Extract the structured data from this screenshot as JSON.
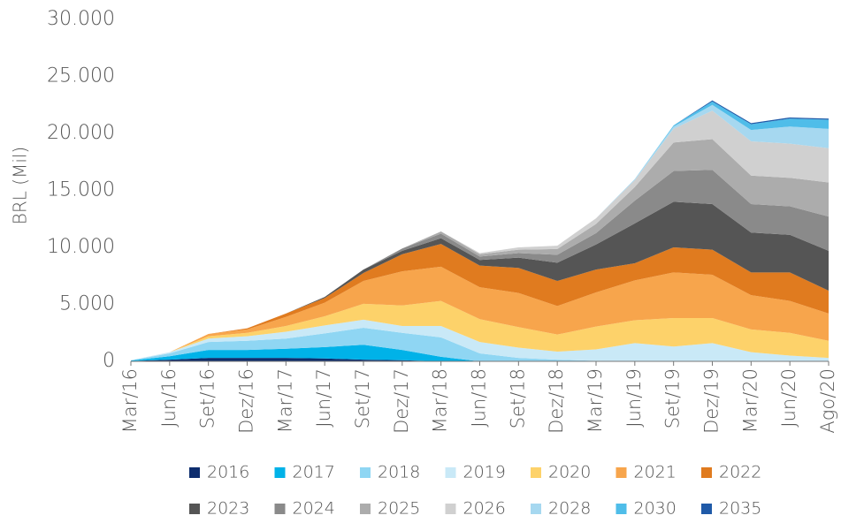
{
  "chart_data": {
    "type": "stacked_area",
    "y_label": "BRL (Mil)",
    "categories": [
      "Mar/16",
      "Jun/16",
      "Set/16",
      "Dez/16",
      "Mar/17",
      "Jun/17",
      "Set/17",
      "Dez/17",
      "Mar/18",
      "Jun/18",
      "Set/18",
      "Dez/18",
      "Mar/19",
      "Jun/19",
      "Set/19",
      "Dez/19",
      "Mar/20",
      "Jun/20",
      "Ago/20"
    ],
    "ylim": [
      0,
      30000
    ],
    "yticks": [
      0,
      {
        "value": 5000,
        "label": "5.000"
      },
      {
        "value": 10000,
        "label": "10.000"
      },
      {
        "value": 15000,
        "label": "15.000"
      },
      {
        "value": 20000,
        "label": "20.000"
      },
      {
        "value": 25000,
        "label": "25.000"
      },
      {
        "value": 30000,
        "label": "30.000"
      }
    ],
    "grid": false,
    "legend": "bottom",
    "series": [
      {
        "name": "2016",
        "color": "#0d2d6e",
        "values": [
          30,
          150,
          300,
          300,
          300,
          250,
          150,
          100,
          0,
          0,
          0,
          0,
          0,
          0,
          0,
          0,
          0,
          0,
          0
        ]
      },
      {
        "name": "2017",
        "color": "#00b2e8",
        "values": [
          40,
          300,
          700,
          700,
          800,
          1000,
          1300,
          900,
          400,
          0,
          0,
          0,
          0,
          0,
          0,
          0,
          0,
          0,
          0
        ]
      },
      {
        "name": "2018",
        "color": "#8fd6f3",
        "values": [
          30,
          250,
          700,
          800,
          900,
          1200,
          1500,
          1500,
          1700,
          700,
          300,
          150,
          50,
          0,
          0,
          0,
          0,
          0,
          0
        ]
      },
      {
        "name": "2019",
        "color": "#c9e9f7",
        "values": [
          0,
          100,
          300,
          400,
          600,
          700,
          700,
          600,
          1000,
          1000,
          900,
          700,
          1000,
          1600,
          1300,
          1600,
          800,
          500,
          300
        ]
      },
      {
        "name": "2020",
        "color": "#fdd26a",
        "values": [
          0,
          0,
          200,
          300,
          500,
          800,
          1400,
          1800,
          2200,
          2000,
          1800,
          1500,
          2000,
          2000,
          2500,
          2200,
          2000,
          2000,
          1500
        ]
      },
      {
        "name": "2021",
        "color": "#f7a54c",
        "values": [
          0,
          0,
          200,
          300,
          800,
          1200,
          2000,
          3000,
          3000,
          2800,
          3000,
          2500,
          3000,
          3500,
          4000,
          3800,
          3000,
          2800,
          2400
        ]
      },
      {
        "name": "2022",
        "color": "#e07b1f",
        "values": [
          0,
          0,
          0,
          100,
          300,
          400,
          700,
          1500,
          2000,
          1900,
          2200,
          2200,
          2000,
          1500,
          2200,
          2200,
          2000,
          2500,
          2000
        ]
      },
      {
        "name": "2023",
        "color": "#555555",
        "values": [
          0,
          0,
          0,
          0,
          0,
          100,
          300,
          300,
          500,
          500,
          900,
          1600,
          2200,
          3500,
          4000,
          4000,
          3500,
          3300,
          3500
        ]
      },
      {
        "name": "2024",
        "color": "#8a8a8a",
        "values": [
          0,
          0,
          0,
          0,
          0,
          0,
          0,
          200,
          400,
          300,
          400,
          700,
          1000,
          2000,
          2700,
          3000,
          2500,
          2500,
          3000
        ]
      },
      {
        "name": "2025",
        "color": "#acacac",
        "values": [
          0,
          0,
          0,
          0,
          0,
          0,
          0,
          0,
          200,
          200,
          300,
          500,
          800,
          1200,
          2500,
          2700,
          2500,
          2500,
          3000
        ]
      },
      {
        "name": "2026",
        "color": "#d0d0d0",
        "values": [
          0,
          0,
          0,
          0,
          0,
          0,
          0,
          0,
          0,
          100,
          200,
          300,
          500,
          600,
          1200,
          2500,
          3000,
          3000,
          3000
        ]
      },
      {
        "name": "2028",
        "color": "#a6d8f0",
        "values": [
          0,
          0,
          0,
          0,
          0,
          0,
          0,
          0,
          0,
          0,
          0,
          0,
          0,
          100,
          200,
          500,
          1000,
          1500,
          1700
        ]
      },
      {
        "name": "2030",
        "color": "#4fbde9",
        "values": [
          0,
          0,
          0,
          0,
          0,
          0,
          0,
          0,
          0,
          0,
          0,
          0,
          0,
          0,
          100,
          300,
          500,
          700,
          800
        ]
      },
      {
        "name": "2035",
        "color": "#1f5aa8",
        "values": [
          0,
          0,
          0,
          0,
          0,
          0,
          0,
          0,
          0,
          0,
          0,
          0,
          0,
          0,
          0,
          100,
          100,
          100,
          100
        ]
      }
    ]
  }
}
